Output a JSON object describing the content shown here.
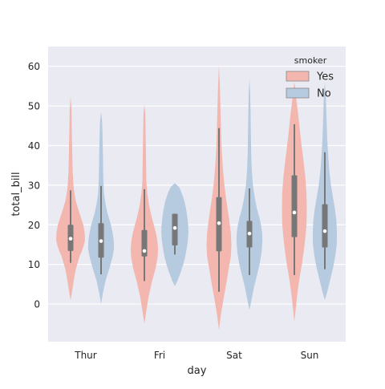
{
  "chart_data": {
    "type": "violin",
    "xlabel": "day",
    "ylabel": "total_bill",
    "categories": [
      "Thur",
      "Fri",
      "Sat",
      "Sun"
    ],
    "ylim": [
      -9.5,
      65
    ],
    "yticks": [
      0,
      10,
      20,
      30,
      40,
      50,
      60
    ],
    "grid": true,
    "legend": {
      "title": "smoker",
      "placement": "top-right"
    },
    "series": [
      {
        "name": "Yes",
        "color": "#f4b7b0",
        "violins": [
          {
            "category": "Thur",
            "profile": [
              [
                1.0,
                0.0
              ],
              [
                3.0,
                0.1
              ],
              [
                6.0,
                0.22
              ],
              [
                9.0,
                0.38
              ],
              [
                12.0,
                0.62
              ],
              [
                14.0,
                0.85
              ],
              [
                16.0,
                1.0
              ],
              [
                18.0,
                0.98
              ],
              [
                20.0,
                0.88
              ],
              [
                22.0,
                0.7
              ],
              [
                24.0,
                0.52
              ],
              [
                26.0,
                0.36
              ],
              [
                28.0,
                0.26
              ],
              [
                30.0,
                0.2
              ],
              [
                33.0,
                0.15
              ],
              [
                37.0,
                0.12
              ],
              [
                41.0,
                0.1
              ],
              [
                45.0,
                0.08
              ],
              [
                49.0,
                0.06
              ],
              [
                52.5,
                0.0
              ]
            ],
            "box": {
              "q1": 13.4,
              "median": 16.5,
              "q3": 20.0,
              "whisker_low": 10.4,
              "whisker_high": 28.7
            }
          },
          {
            "category": "Fri",
            "profile": [
              [
                -5.0,
                0.0
              ],
              [
                -2.0,
                0.12
              ],
              [
                2.0,
                0.3
              ],
              [
                6.0,
                0.55
              ],
              [
                9.0,
                0.78
              ],
              [
                12.0,
                0.92
              ],
              [
                14.0,
                0.95
              ],
              [
                16.0,
                0.9
              ],
              [
                18.0,
                0.8
              ],
              [
                20.0,
                0.65
              ],
              [
                22.0,
                0.5
              ],
              [
                25.0,
                0.32
              ],
              [
                28.0,
                0.2
              ],
              [
                31.0,
                0.14
              ],
              [
                35.0,
                0.12
              ],
              [
                40.0,
                0.1
              ],
              [
                45.0,
                0.08
              ],
              [
                48.0,
                0.06
              ],
              [
                50.5,
                0.0
              ]
            ],
            "box": {
              "q1": 12.0,
              "median": 13.4,
              "q3": 18.7,
              "whisker_low": 5.8,
              "whisker_high": 29.0
            }
          },
          {
            "category": "Sat",
            "profile": [
              [
                -6.5,
                0.0
              ],
              [
                -3.0,
                0.12
              ],
              [
                1.0,
                0.3
              ],
              [
                5.0,
                0.5
              ],
              [
                9.0,
                0.68
              ],
              [
                12.0,
                0.82
              ],
              [
                15.0,
                0.86
              ],
              [
                18.0,
                0.82
              ],
              [
                21.0,
                0.72
              ],
              [
                24.0,
                0.6
              ],
              [
                27.0,
                0.48
              ],
              [
                30.0,
                0.38
              ],
              [
                33.0,
                0.3
              ],
              [
                36.0,
                0.24
              ],
              [
                40.0,
                0.18
              ],
              [
                45.0,
                0.14
              ],
              [
                50.0,
                0.1
              ],
              [
                55.0,
                0.06
              ],
              [
                60.3,
                0.0
              ]
            ],
            "box": {
              "q1": 13.3,
              "median": 20.4,
              "q3": 27.0,
              "whisker_low": 3.1,
              "whisker_high": 44.4
            }
          },
          {
            "category": "Sun",
            "profile": [
              [
                -4.5,
                0.0
              ],
              [
                -1.0,
                0.1
              ],
              [
                3.0,
                0.22
              ],
              [
                7.0,
                0.38
              ],
              [
                10.0,
                0.52
              ],
              [
                13.0,
                0.64
              ],
              [
                16.0,
                0.74
              ],
              [
                20.0,
                0.84
              ],
              [
                24.0,
                0.86
              ],
              [
                28.0,
                0.84
              ],
              [
                32.0,
                0.76
              ],
              [
                36.0,
                0.64
              ],
              [
                40.0,
                0.5
              ],
              [
                44.0,
                0.38
              ],
              [
                48.0,
                0.26
              ],
              [
                51.0,
                0.16
              ],
              [
                54.0,
                0.08
              ],
              [
                56.0,
                0.0
              ]
            ],
            "box": {
              "q1": 16.9,
              "median": 23.1,
              "q3": 32.5,
              "whisker_low": 7.3,
              "whisker_high": 45.4
            }
          }
        ]
      },
      {
        "name": "No",
        "color": "#b6cbdf",
        "violins": [
          {
            "category": "Thur",
            "profile": [
              [
                0.0,
                0.0
              ],
              [
                3.0,
                0.14
              ],
              [
                6.0,
                0.32
              ],
              [
                9.0,
                0.58
              ],
              [
                12.0,
                0.8
              ],
              [
                14.0,
                0.9
              ],
              [
                16.0,
                0.88
              ],
              [
                18.0,
                0.8
              ],
              [
                20.0,
                0.68
              ],
              [
                22.0,
                0.52
              ],
              [
                24.0,
                0.38
              ],
              [
                26.0,
                0.28
              ],
              [
                28.0,
                0.2
              ],
              [
                31.0,
                0.16
              ],
              [
                35.0,
                0.14
              ],
              [
                39.0,
                0.12
              ],
              [
                43.0,
                0.1
              ],
              [
                46.0,
                0.07
              ],
              [
                48.5,
                0.0
              ]
            ],
            "box": {
              "q1": 11.7,
              "median": 15.9,
              "q3": 20.4,
              "whisker_low": 7.5,
              "whisker_high": 29.8
            }
          },
          {
            "category": "Fri",
            "profile": [
              [
                4.5,
                0.0
              ],
              [
                6.0,
                0.2
              ],
              [
                8.0,
                0.4
              ],
              [
                10.0,
                0.58
              ],
              [
                12.0,
                0.72
              ],
              [
                14.0,
                0.82
              ],
              [
                16.0,
                0.9
              ],
              [
                18.0,
                0.94
              ],
              [
                20.0,
                0.92
              ],
              [
                22.0,
                0.86
              ],
              [
                24.0,
                0.78
              ],
              [
                26.0,
                0.66
              ],
              [
                28.0,
                0.48
              ],
              [
                29.5,
                0.3
              ],
              [
                30.5,
                0.0
              ]
            ],
            "box": {
              "q1": 14.8,
              "median": 19.2,
              "q3": 22.8,
              "whisker_low": 12.5,
              "whisker_high": 22.8
            }
          },
          {
            "category": "Sat",
            "profile": [
              [
                -1.5,
                0.0
              ],
              [
                1.0,
                0.14
              ],
              [
                4.0,
                0.3
              ],
              [
                7.0,
                0.5
              ],
              [
                10.0,
                0.7
              ],
              [
                13.0,
                0.84
              ],
              [
                16.0,
                0.9
              ],
              [
                18.0,
                0.88
              ],
              [
                20.0,
                0.8
              ],
              [
                22.0,
                0.68
              ],
              [
                24.0,
                0.52
              ],
              [
                27.0,
                0.36
              ],
              [
                30.0,
                0.24
              ],
              [
                34.0,
                0.16
              ],
              [
                38.0,
                0.12
              ],
              [
                43.0,
                0.1
              ],
              [
                48.0,
                0.08
              ],
              [
                53.0,
                0.05
              ],
              [
                57.0,
                0.0
              ]
            ],
            "box": {
              "q1": 14.3,
              "median": 17.8,
              "q3": 21.0,
              "whisker_low": 7.3,
              "whisker_high": 29.2
            }
          },
          {
            "category": "Sun",
            "profile": [
              [
                1.0,
                0.0
              ],
              [
                3.0,
                0.16
              ],
              [
                6.0,
                0.36
              ],
              [
                9.0,
                0.56
              ],
              [
                12.0,
                0.72
              ],
              [
                15.0,
                0.82
              ],
              [
                18.0,
                0.84
              ],
              [
                21.0,
                0.8
              ],
              [
                24.0,
                0.7
              ],
              [
                27.0,
                0.56
              ],
              [
                30.0,
                0.42
              ],
              [
                34.0,
                0.3
              ],
              [
                38.0,
                0.22
              ],
              [
                42.0,
                0.16
              ],
              [
                46.0,
                0.12
              ],
              [
                50.0,
                0.09
              ],
              [
                53.0,
                0.06
              ],
              [
                56.0,
                0.0
              ]
            ],
            "box": {
              "q1": 14.3,
              "median": 18.4,
              "q3": 25.2,
              "whisker_low": 8.8,
              "whisker_high": 38.3
            }
          }
        ]
      }
    ]
  }
}
